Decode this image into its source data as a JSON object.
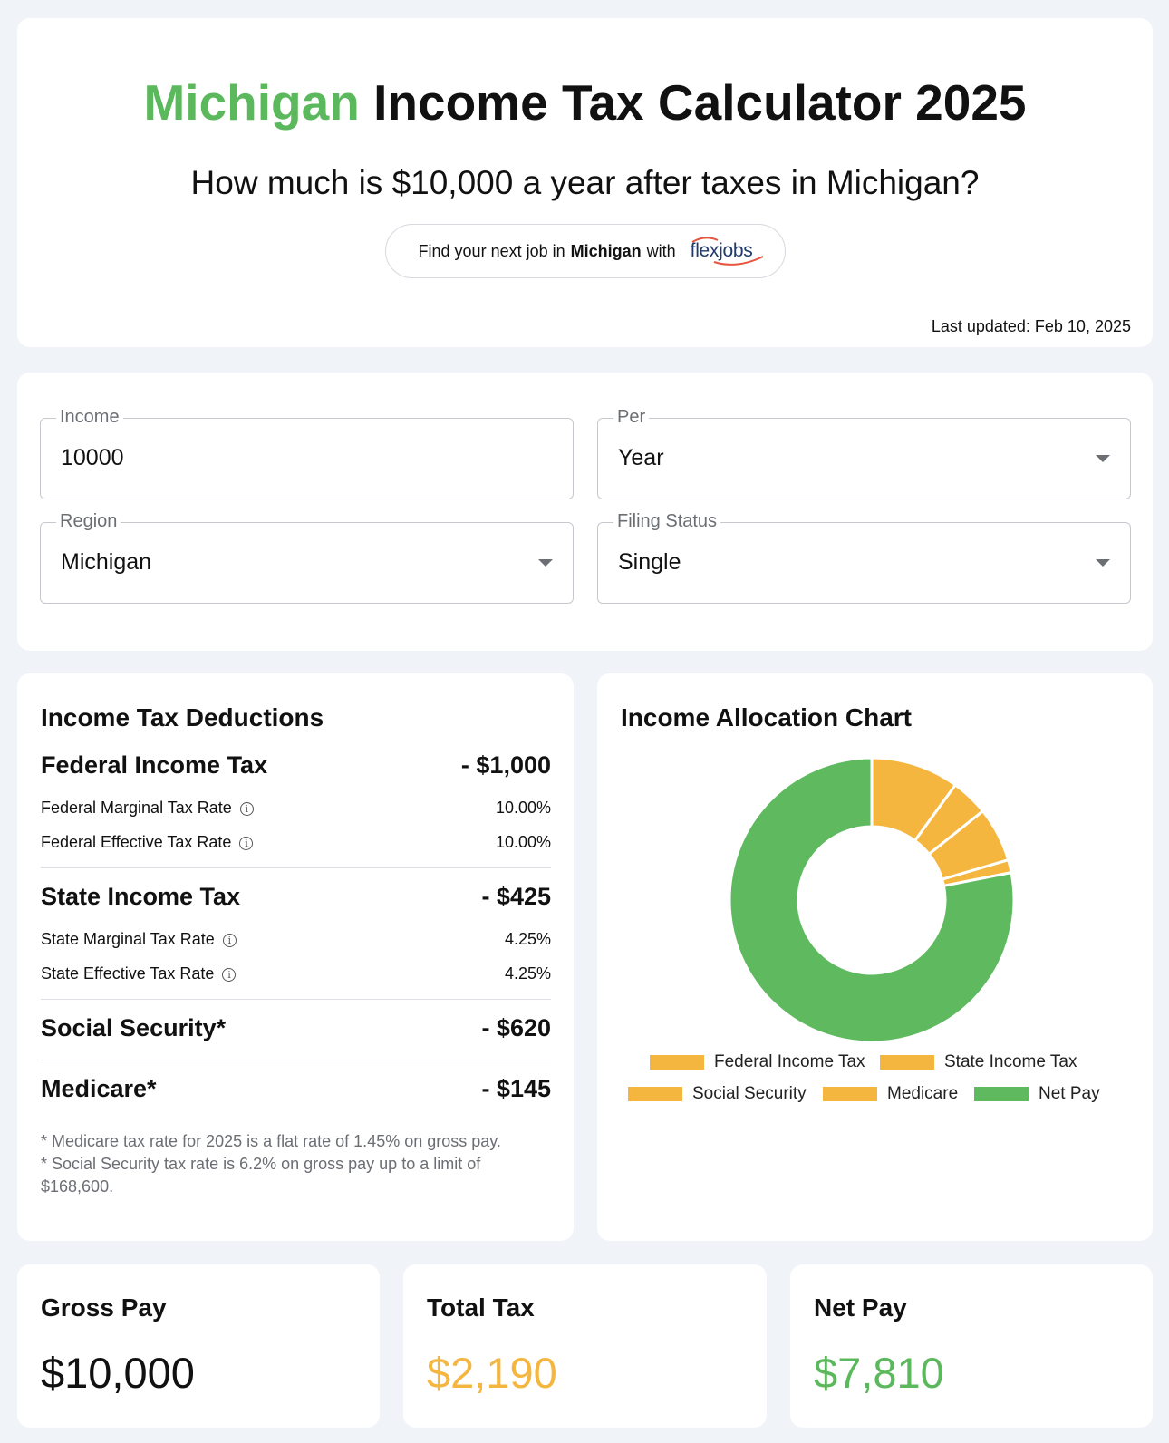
{
  "header": {
    "title_accent": "Michigan",
    "title_rest": "Income Tax Calculator 2025",
    "subtitle": "How much is $10,000 a year after taxes in Michigan?",
    "job_button": {
      "prefix": "Find your next job in",
      "state": "Michigan",
      "suffix": "with",
      "logo_text": "flexjobs",
      "logo_icon": "flexjobs-logo"
    },
    "last_updated": "Last updated: Feb 10, 2025"
  },
  "form": {
    "income": {
      "label": "Income",
      "value": "10000"
    },
    "per": {
      "label": "Per",
      "value": "Year"
    },
    "region": {
      "label": "Region",
      "value": "Michigan"
    },
    "filing_status": {
      "label": "Filing Status",
      "value": "Single"
    }
  },
  "deductions": {
    "title": "Income Tax Deductions",
    "federal": {
      "label": "Federal Income Tax",
      "value": "- $1,000",
      "marginal_label": "Federal Marginal Tax Rate",
      "marginal_value": "10.00%",
      "effective_label": "Federal Effective Tax Rate",
      "effective_value": "10.00%"
    },
    "state": {
      "label": "State Income Tax",
      "value": "- $425",
      "marginal_label": "State Marginal Tax Rate",
      "marginal_value": "4.25%",
      "effective_label": "State Effective Tax Rate",
      "effective_value": "4.25%"
    },
    "social_security": {
      "label": "Social Security*",
      "value": "- $620"
    },
    "medicare": {
      "label": "Medicare*",
      "value": "- $145"
    },
    "footnote_1": "* Medicare tax rate for 2025 is a flat rate of 1.45% on gross pay.",
    "footnote_2": "* Social Security tax rate is 6.2% on gross pay up to a limit of $168,600."
  },
  "chart": {
    "title": "Income Allocation Chart",
    "colors": {
      "tax": "#f4b63f",
      "net": "#5fba5f"
    }
  },
  "chart_data": {
    "type": "pie",
    "categories": [
      "Federal Income Tax",
      "State Income Tax",
      "Social Security",
      "Medicare",
      "Net Pay"
    ],
    "values": [
      1000,
      425,
      620,
      145,
      7810
    ],
    "colors": [
      "#f4b63f",
      "#f4b63f",
      "#f4b63f",
      "#f4b63f",
      "#5fba5f"
    ],
    "legend": "bottom"
  },
  "summary": {
    "gross": {
      "label": "Gross Pay",
      "value": "$10,000",
      "color": "#111111"
    },
    "tax": {
      "label": "Total Tax",
      "value": "$2,190",
      "color": "#f4b63f"
    },
    "net": {
      "label": "Net Pay",
      "value": "$7,810",
      "color": "#5cb85c"
    }
  }
}
